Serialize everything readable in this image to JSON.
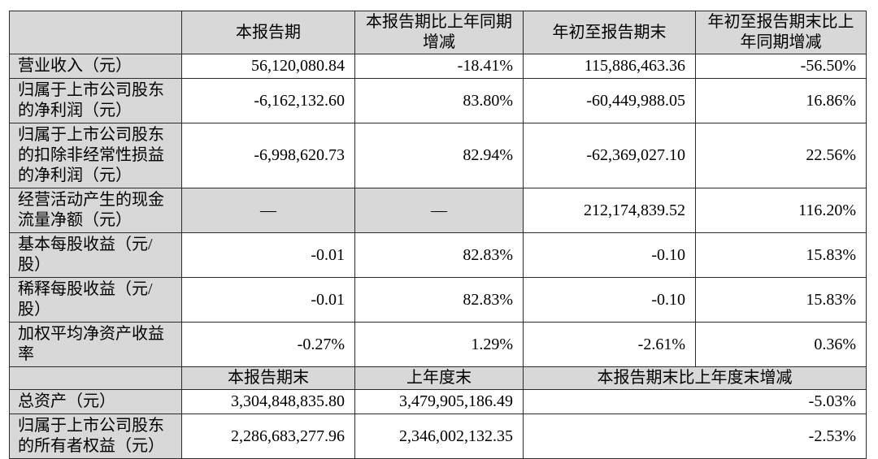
{
  "colors": {
    "shaded_cell_bg": "#d8d8d8",
    "border": "#2b2b2b",
    "text": "#000000",
    "page_bg": "#ffffff"
  },
  "report_table": {
    "main": {
      "col_headers": [
        "本报告期",
        "本报告期比上年同期增减",
        "年初至报告期末",
        "年初至报告期末比上年同期增减"
      ],
      "rows": [
        {
          "label": "营业收入（元）",
          "v1": "56,120,080.84",
          "v2": "-18.41%",
          "v3": "115,886,463.36",
          "v4": "-56.50%"
        },
        {
          "label": "归属于上市公司股东的净利润（元）",
          "v1": "-6,162,132.60",
          "v2": "83.80%",
          "v3": "-60,449,988.05",
          "v4": "16.86%"
        },
        {
          "label": "归属于上市公司股东的扣除非经常性损益的净利润（元）",
          "v1": "-6,998,620.73",
          "v2": "82.94%",
          "v3": "-62,369,027.10",
          "v4": "22.56%"
        },
        {
          "label": "经营活动产生的现金流量净额（元）",
          "v1": "—",
          "v2": "—",
          "v3": "212,174,839.52",
          "v4": "116.20%"
        },
        {
          "label": "基本每股收益（元/股）",
          "v1": "-0.01",
          "v2": "82.83%",
          "v3": "-0.10",
          "v4": "15.83%"
        },
        {
          "label": "稀释每股收益（元/股）",
          "v1": "-0.01",
          "v2": "82.83%",
          "v3": "-0.10",
          "v4": "15.83%"
        },
        {
          "label": "加权平均净资产收益率",
          "v1": "-0.27%",
          "v2": "1.29%",
          "v3": "-2.61%",
          "v4": "0.36%"
        }
      ]
    },
    "balance": {
      "col_headers": [
        "本报告期末",
        "上年度末",
        "本报告期末比上年度末增减"
      ],
      "rows": [
        {
          "label": "总资产（元）",
          "v1": "3,304,848,835.80",
          "v2": "3,479,905,186.49",
          "v3": "-5.03%"
        },
        {
          "label": "归属于上市公司股东的所有者权益（元）",
          "v1": "2,286,683,277.96",
          "v2": "2,346,002,132.35",
          "v3": "-2.53%"
        }
      ]
    }
  }
}
